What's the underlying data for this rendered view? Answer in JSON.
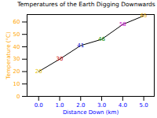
{
  "chart_data": {
    "type": "line",
    "title": "Temperatures of the Earth Digging Downwards",
    "x_label": "Distance Down (km)",
    "y_label": "Temperature (°C)",
    "x": [
      0,
      1,
      2,
      3,
      4,
      5
    ],
    "values": [
      20,
      30,
      41,
      46,
      58,
      65
    ],
    "color": "black",
    "colors": [
      "#e6c200",
      "#cc0000",
      "#0000cc",
      "#008800",
      "#cc00cc",
      "#e6a800"
    ],
    "data_labels": true,
    "xlim": [
      -0.55,
      5.5
    ],
    "xticks": [
      0,
      1,
      2,
      3,
      4,
      5
    ],
    "ylim": [
      0,
      66
    ],
    "yticks": [
      0,
      10,
      20,
      30,
      40,
      50,
      60
    ]
  }
}
